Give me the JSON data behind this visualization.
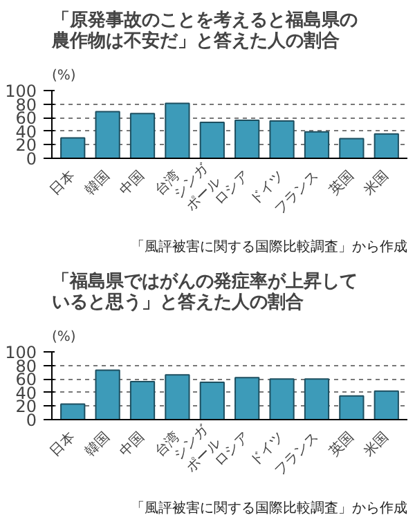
{
  "chart_data": [
    {
      "type": "bar",
      "title": "「原発事故のことを考えると福島県の農作物は不安だ」と答えた人の割合",
      "ylabel": "(%)",
      "categories": [
        "日本",
        "韓国",
        "中国",
        "台湾",
        "シンガ\nポール",
        "ロシア",
        "ドイツ",
        "フランス",
        "英国",
        "米国"
      ],
      "values": [
        30,
        69,
        66,
        81,
        53,
        56,
        55,
        39,
        29,
        36
      ],
      "color": "#3d9bb9",
      "ylim": [
        0,
        100
      ],
      "yticks": [
        0,
        20,
        40,
        60,
        80,
        100
      ],
      "grid": "y",
      "annotations": [
        "「風評被害に関する国際比較調査」から作成"
      ]
    },
    {
      "type": "bar",
      "title": "「福島県ではがんの発症率が上昇していると思う」と答えた人の割合",
      "ylabel": "(%)",
      "categories": [
        "日本",
        "韓国",
        "中国",
        "台湾",
        "シンガ\nポール",
        "ロシア",
        "ドイツ",
        "フランス",
        "英国",
        "米国"
      ],
      "values": [
        23,
        73,
        56,
        66,
        55,
        62,
        60,
        60,
        35,
        42
      ],
      "color": "#3d9bb9",
      "ylim": [
        0,
        100
      ],
      "yticks": [
        0,
        20,
        40,
        60,
        80,
        100
      ],
      "grid": "y",
      "annotations": [
        "「風評被害に関する国際比較調査」から作成"
      ]
    }
  ]
}
